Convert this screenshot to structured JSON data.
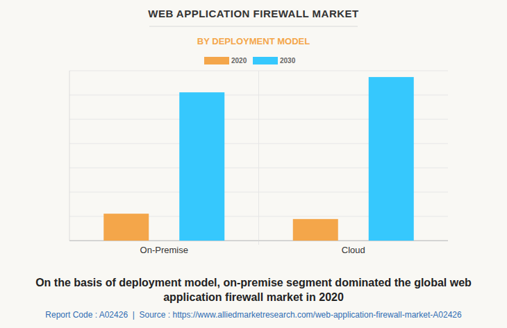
{
  "chart_data": {
    "type": "bar",
    "title": "WEB APPLICATION FIREWALL MARKET",
    "subtitle": "BY DEPLOYMENT MODEL",
    "categories": [
      "On-Premise",
      "Cloud"
    ],
    "series": [
      {
        "name": "2020",
        "color": "#f4a64a",
        "values": [
          1.11,
          0.89
        ]
      },
      {
        "name": "2030",
        "color": "#36c8fd",
        "values": [
          6.11,
          6.74
        ]
      }
    ],
    "ylim": [
      0,
      7
    ],
    "yticks": [
      0,
      1,
      2,
      3,
      4,
      5,
      6,
      7
    ],
    "grid": true,
    "tick_labels": "x",
    "legend": "top",
    "annotations": [
      "On the basis of deployment model, on-premise segment dominated the global web application firewall market in 2020",
      "Report Code : A02426  |  Source : https://www.alliedmarketresearch.com/web-application-firewall-market-A02426"
    ]
  }
}
